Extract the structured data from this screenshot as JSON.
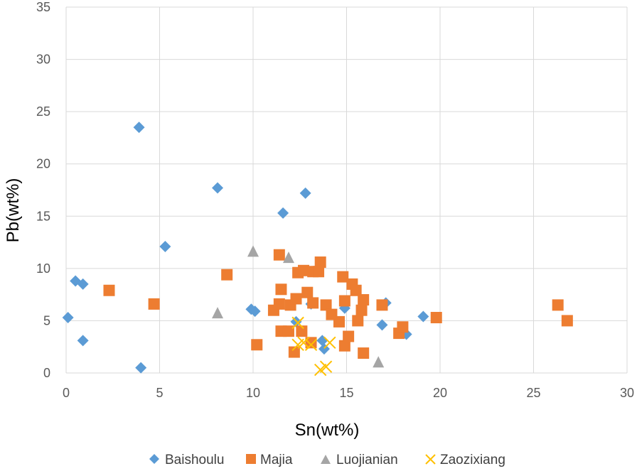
{
  "chart_data": {
    "type": "scatter",
    "title": "",
    "xlabel": "Sn(wt%)",
    "ylabel": "Pb(wt%)",
    "xlim": [
      0,
      30
    ],
    "ylim": [
      0,
      35
    ],
    "xticks": [
      0,
      5,
      10,
      15,
      20,
      25,
      30
    ],
    "yticks": [
      0,
      5,
      10,
      15,
      20,
      25,
      30,
      35
    ],
    "xtick_labels": [
      "0",
      "5",
      "10",
      "15",
      "20",
      "25",
      "30"
    ],
    "ytick_labels": [
      "0",
      "5",
      "10",
      "15",
      "20",
      "25",
      "30",
      "35"
    ],
    "grid": true,
    "legend_position": "bottom",
    "series": [
      {
        "name": "Baishoulu",
        "marker": "diamond",
        "color": "#5B9BD5",
        "points": [
          [
            0.1,
            5.3
          ],
          [
            0.5,
            8.8
          ],
          [
            0.9,
            8.5
          ],
          [
            0.9,
            3.1
          ],
          [
            3.9,
            23.5
          ],
          [
            4.0,
            0.5
          ],
          [
            5.3,
            12.1
          ],
          [
            8.1,
            17.7
          ],
          [
            9.9,
            6.1
          ],
          [
            10.1,
            5.9
          ],
          [
            11.6,
            15.3
          ],
          [
            12.3,
            4.9
          ],
          [
            12.8,
            17.2
          ],
          [
            13.1,
            6.6
          ],
          [
            13.7,
            3.1
          ],
          [
            13.8,
            2.3
          ],
          [
            14.9,
            6.2
          ],
          [
            17.1,
            6.7
          ],
          [
            16.9,
            4.6
          ],
          [
            18.2,
            3.7
          ],
          [
            19.1,
            5.4
          ]
        ]
      },
      {
        "name": "Majia",
        "marker": "square",
        "color": "#ED7D31",
        "points": [
          [
            2.3,
            7.9
          ],
          [
            4.7,
            6.6
          ],
          [
            8.6,
            9.4
          ],
          [
            10.2,
            2.7
          ],
          [
            11.1,
            6.0
          ],
          [
            11.4,
            11.3
          ],
          [
            11.4,
            6.6
          ],
          [
            11.5,
            8.0
          ],
          [
            11.5,
            4.0
          ],
          [
            11.9,
            4.0
          ],
          [
            12.0,
            6.5
          ],
          [
            12.2,
            2.0
          ],
          [
            12.3,
            7.1
          ],
          [
            12.4,
            9.6
          ],
          [
            12.6,
            4.0
          ],
          [
            12.7,
            9.8
          ],
          [
            12.9,
            7.7
          ],
          [
            13.1,
            2.9
          ],
          [
            13.2,
            6.7
          ],
          [
            13.2,
            9.7
          ],
          [
            13.5,
            9.7
          ],
          [
            13.6,
            10.6
          ],
          [
            13.9,
            6.5
          ],
          [
            14.2,
            5.6
          ],
          [
            14.6,
            4.9
          ],
          [
            14.8,
            9.2
          ],
          [
            14.9,
            6.9
          ],
          [
            14.9,
            2.6
          ],
          [
            15.1,
            3.5
          ],
          [
            15.3,
            8.5
          ],
          [
            15.5,
            7.9
          ],
          [
            15.6,
            5.0
          ],
          [
            15.8,
            6.0
          ],
          [
            15.9,
            7.0
          ],
          [
            15.9,
            1.9
          ],
          [
            16.9,
            6.5
          ],
          [
            17.8,
            3.8
          ],
          [
            18.0,
            4.4
          ],
          [
            19.8,
            5.3
          ],
          [
            26.3,
            6.5
          ],
          [
            26.8,
            5.0
          ]
        ]
      },
      {
        "name": "Luojianian",
        "marker": "triangle",
        "color": "#A5A5A5",
        "points": [
          [
            8.1,
            5.7
          ],
          [
            10.0,
            11.6
          ],
          [
            11.9,
            11.0
          ],
          [
            16.7,
            1.0
          ]
        ]
      },
      {
        "name": "Zaozixiang",
        "marker": "x",
        "color": "#FFC000",
        "points": [
          [
            12.4,
            4.8
          ],
          [
            12.4,
            2.7
          ],
          [
            12.7,
            2.9
          ],
          [
            13.1,
            2.7
          ],
          [
            13.6,
            0.3
          ],
          [
            13.9,
            0.6
          ],
          [
            14.1,
            2.9
          ]
        ]
      }
    ]
  }
}
